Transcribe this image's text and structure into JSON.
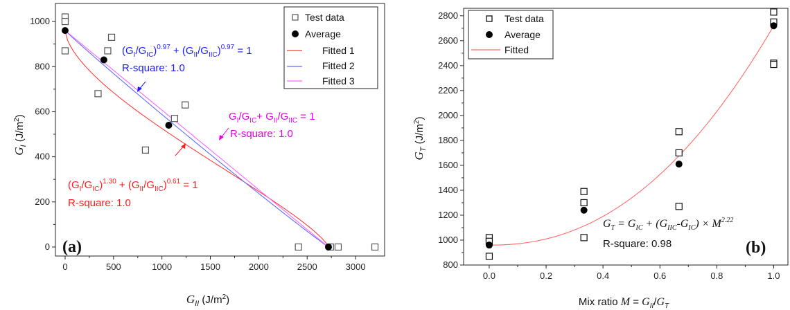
{
  "chart_data": [
    {
      "type": "scatter",
      "panel_label": "(a)",
      "xlabel": "G_II (J/m²)",
      "ylabel": "G_I (J/m²)",
      "xlim": [
        -100,
        3300
      ],
      "ylim": [
        -40,
        1080
      ],
      "xticks": [
        0,
        500,
        1000,
        1500,
        2000,
        2500,
        3000
      ],
      "yticks": [
        0,
        200,
        400,
        600,
        800,
        1000
      ],
      "legend": [
        "Test data",
        "Average",
        "Fitted 1",
        "Fitted 2",
        "Fitted 3"
      ],
      "legend_position": "top-right",
      "series": [
        {
          "name": "Test data",
          "marker": "open-square",
          "color": "#555555",
          "points": [
            [
              0,
              1020
            ],
            [
              0,
              1000
            ],
            [
              0,
              870
            ],
            [
              340,
              680
            ],
            [
              440,
              870
            ],
            [
              480,
              930
            ],
            [
              830,
              430
            ],
            [
              1130,
              570
            ],
            [
              1240,
              630
            ],
            [
              2410,
              0
            ],
            [
              2740,
              0
            ],
            [
              2820,
              0
            ],
            [
              3200,
              0
            ]
          ]
        },
        {
          "name": "Average",
          "marker": "filled-circle",
          "color": "#000000",
          "points": [
            [
              0,
              960
            ],
            [
              400,
              830
            ],
            [
              1070,
              540
            ],
            [
              2720,
              0
            ]
          ]
        },
        {
          "name": "Fitted 1",
          "line": true,
          "color": "#ff3b3b",
          "GIC": 960,
          "GIIC": 2720,
          "a": 1.3,
          "b": 0.61
        },
        {
          "name": "Fitted 2",
          "line": true,
          "color": "#5c6cff",
          "GIC": 960,
          "GIIC": 2720,
          "a": 0.97,
          "b": 0.97
        },
        {
          "name": "Fitted 3",
          "line": true,
          "color": "#ff66ff",
          "GIC": 960,
          "GIIC": 2720,
          "a": 1,
          "b": 1
        }
      ],
      "annotations": [
        {
          "id": "fit2",
          "color": "#1a1aff",
          "equation": "(G_I/G_IC)^0.97 + (G_II/G_IIC)^0.97 = 1",
          "r2_label": "R-square:  1.0"
        },
        {
          "id": "fit3",
          "color": "#e600e6",
          "equation": "G_I/G_IC+ G_II/G_IIC = 1",
          "r2_label": "R-square:  1.0"
        },
        {
          "id": "fit1",
          "color": "#ff1a1a",
          "equation": "(G_I/G_IC)^1.30 + (G_II/G_IIC)^0.61 = 1",
          "r2_label": "R-square:  1.0"
        }
      ]
    },
    {
      "type": "scatter",
      "panel_label": "(b)",
      "xlabel": "Mix ratio M = G_II/G_T",
      "ylabel": "G_T (J/m²)",
      "xlim": [
        -0.09,
        1.05
      ],
      "ylim": [
        800,
        2860
      ],
      "xticks": [
        0.0,
        0.2,
        0.4,
        0.6,
        0.8,
        1.0
      ],
      "yticks": [
        800,
        1000,
        1200,
        1400,
        1600,
        1800,
        2000,
        2200,
        2400,
        2600,
        2800
      ],
      "legend": [
        "Test data",
        "Average",
        "Fitted"
      ],
      "legend_position": "top-left",
      "series": [
        {
          "name": "Test data",
          "marker": "open-square",
          "color": "#111111",
          "points": [
            [
              0,
              1020
            ],
            [
              0,
              990
            ],
            [
              0,
              870
            ],
            [
              0.333,
              1390
            ],
            [
              0.333,
              1300
            ],
            [
              0.333,
              1020
            ],
            [
              0.667,
              1870
            ],
            [
              0.667,
              1700
            ],
            [
              0.667,
              1270
            ],
            [
              1.0,
              2830
            ],
            [
              1.0,
              2750
            ],
            [
              1.0,
              2420
            ],
            [
              1.0,
              2410
            ]
          ]
        },
        {
          "name": "Average",
          "marker": "filled-circle",
          "color": "#000000",
          "points": [
            [
              0,
              960
            ],
            [
              0.333,
              1240
            ],
            [
              0.667,
              1610
            ],
            [
              1.0,
              2720
            ]
          ]
        },
        {
          "name": "Fitted",
          "line": true,
          "color": "#ff6b6b",
          "GIC": 960,
          "GIIC": 2720,
          "exponent": 2.22
        }
      ],
      "annotations": [
        {
          "id": "fitb",
          "color": "#111111",
          "equation": "G_T = G_IC + (G_IIC-G_IC) × M^2.22",
          "r2_label": "R-square:  0.98"
        }
      ]
    }
  ]
}
